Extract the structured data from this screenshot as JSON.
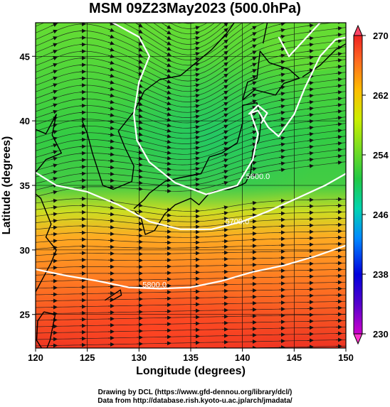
{
  "title": "MSM 09Z23May2023 (500.0hPa)",
  "axes": {
    "xlabel": "Longitude (degrees)",
    "ylabel": "Latitude  (degrees)",
    "x_ticks": [
      "120",
      "125",
      "130",
      "135",
      "140",
      "145",
      "150"
    ],
    "y_ticks": [
      "25",
      "30",
      "35",
      "40",
      "45"
    ],
    "xlim": [
      120,
      150
    ],
    "ylim": [
      22.4,
      47.6
    ]
  },
  "colorbar": {
    "ticks": [
      "270",
      "262",
      "254",
      "246",
      "238",
      "230"
    ],
    "range": [
      230,
      270
    ],
    "colors": [
      "#cc00cc",
      "#0000cc",
      "#0099ff",
      "#00d4a0",
      "#22c844",
      "#66dd22",
      "#ccee00",
      "#ffbb00",
      "#ff6622",
      "#ee2222"
    ]
  },
  "contours": [
    {
      "label": "5700.0",
      "lon": 139.5,
      "lat": 32.0
    },
    {
      "label": "5800.0",
      "lon": 131.5,
      "lat": 27.1
    },
    {
      "label": "5600.0",
      "lon": 141.5,
      "lat": 35.5
    }
  ],
  "footer": {
    "line1": "Drawing by DCL (https://www.gfd-dennou.org/library/dcl/)",
    "line2": "Data from http://database.rish.kyoto-u.ac.jp/arch/jmadata/"
  }
}
